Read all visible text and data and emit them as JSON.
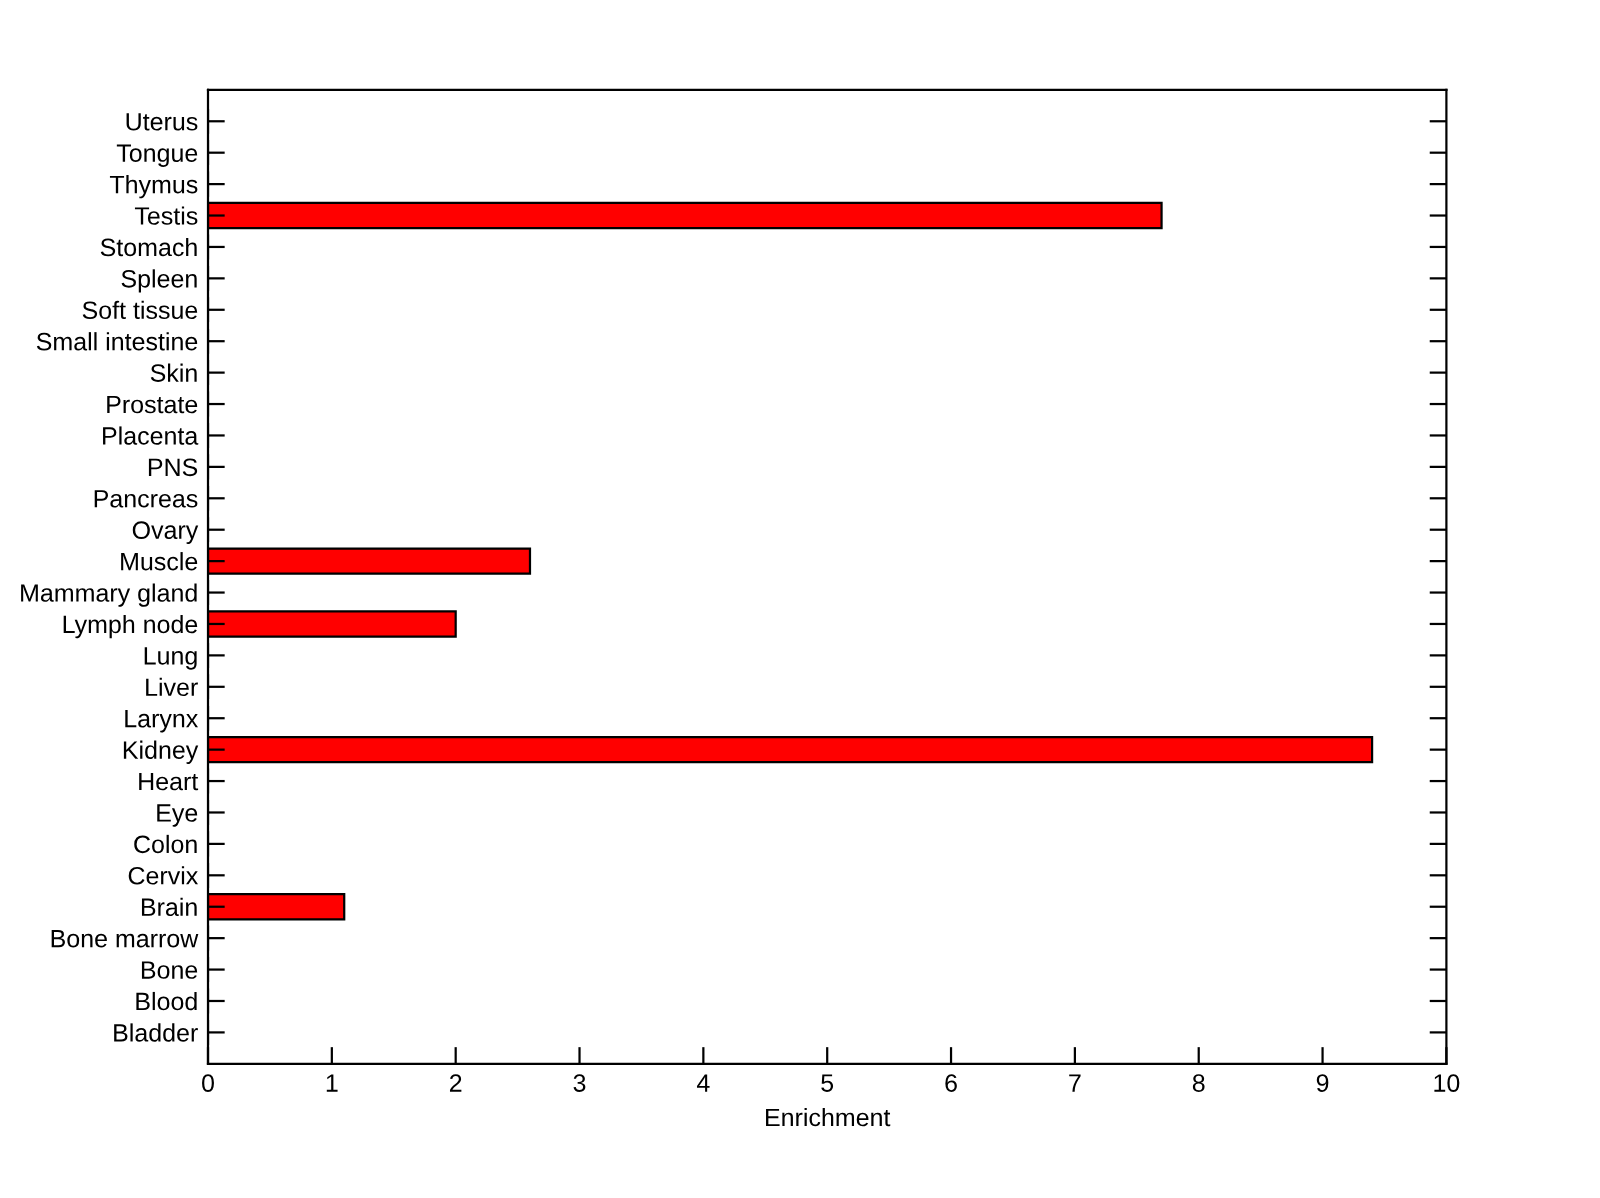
{
  "chart_data": {
    "type": "bar",
    "orientation": "horizontal",
    "xlabel": "Enrichment",
    "categories": [
      "Uterus",
      "Tongue",
      "Thymus",
      "Testis",
      "Stomach",
      "Spleen",
      "Soft tissue",
      "Small intestine",
      "Skin",
      "Prostate",
      "Placenta",
      "PNS",
      "Pancreas",
      "Ovary",
      "Muscle",
      "Mammary gland",
      "Lymph node",
      "Lung",
      "Liver",
      "Larynx",
      "Kidney",
      "Heart",
      "Eye",
      "Colon",
      "Cervix",
      "Brain",
      "Bone marrow",
      "Bone",
      "Blood",
      "Bladder"
    ],
    "values": [
      0,
      0,
      0,
      7.7,
      0,
      0,
      0,
      0,
      0,
      0,
      0,
      0,
      0,
      0,
      2.6,
      0,
      2.0,
      0,
      0,
      0,
      9.4,
      0,
      0,
      0,
      0,
      1.1,
      0,
      0,
      0,
      0
    ],
    "color": "#ff0000",
    "xlim": [
      0,
      10
    ],
    "xticks": [
      0,
      1,
      2,
      3,
      4,
      5,
      6,
      7,
      8,
      9,
      10
    ],
    "grid": false,
    "legend": false
  }
}
